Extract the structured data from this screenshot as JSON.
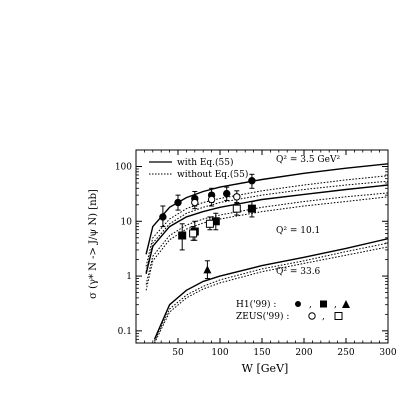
{
  "chart_data": {
    "type": "line",
    "title": "",
    "xlabel": "W  [GeV]",
    "ylabel": "σ (γ* N -> J/ψ N) [nb]",
    "xlim": [
      0,
      300
    ],
    "ylim": [
      0.06,
      200
    ],
    "yscale": "log",
    "xticks": [
      50,
      100,
      150,
      200,
      250,
      300
    ],
    "xtick_labels": [
      "50",
      "100",
      "150",
      "200",
      "250",
      "300"
    ],
    "yticks": [
      0.1,
      1,
      10,
      100
    ],
    "ytick_labels": [
      "0.1",
      "1",
      "10",
      "100"
    ],
    "legend": {
      "placement": "top-left",
      "entries": [
        {
          "label": "with Eq.(55)",
          "style": "solid"
        },
        {
          "label": "without Eq.(55)",
          "style": "dotted"
        }
      ]
    },
    "annotations": [
      "Q² = 3.5 GeV²",
      "Q² = 10.1",
      "Q² = 33.6"
    ],
    "marker_legend": {
      "h1_label": "H1('99) :",
      "zeus_label": "ZEUS('99) :",
      "separator": ","
    },
    "series": [
      {
        "q2": "3.5",
        "style": "solid",
        "x": [
          12,
          20,
          40,
          60,
          80,
          100,
          150,
          200,
          250,
          300
        ],
        "y": [
          2.5,
          8,
          18,
          27,
          35,
          42,
          58,
          75,
          93,
          112
        ]
      },
      {
        "q2": "3.5",
        "style": "dotted",
        "x": [
          12,
          20,
          40,
          60,
          80,
          100,
          150,
          200,
          250,
          300
        ],
        "y": [
          1.5,
          5,
          11,
          17,
          22,
          26,
          36,
          46,
          57,
          68
        ]
      },
      {
        "q2": "3.5",
        "style": "dotted",
        "x": [
          12,
          20,
          40,
          60,
          80,
          100,
          150,
          200,
          250,
          300
        ],
        "y": [
          1.2,
          4,
          9,
          14,
          18,
          22,
          30,
          38,
          46,
          54
        ]
      },
      {
        "q2": "10.1",
        "style": "solid",
        "x": [
          12,
          20,
          40,
          60,
          80,
          100,
          150,
          200,
          250,
          300
        ],
        "y": [
          1.1,
          3.5,
          8,
          12,
          15,
          18,
          25,
          31,
          38,
          46
        ]
      },
      {
        "q2": "10.1",
        "style": "dotted",
        "x": [
          12,
          20,
          40,
          60,
          80,
          100,
          150,
          200,
          250,
          300
        ],
        "y": [
          0.7,
          2.3,
          5.5,
          8.5,
          11,
          13,
          18,
          23,
          28,
          33
        ]
      },
      {
        "q2": "10.1",
        "style": "dotted",
        "x": [
          12,
          20,
          40,
          60,
          80,
          100,
          150,
          200,
          250,
          300
        ],
        "y": [
          0.55,
          1.9,
          4.6,
          7.2,
          9.3,
          11,
          15,
          19,
          23,
          28
        ]
      },
      {
        "q2": "33.6",
        "style": "solid",
        "x": [
          22,
          40,
          60,
          80,
          100,
          150,
          200,
          250,
          300
        ],
        "y": [
          0.07,
          0.3,
          0.55,
          0.8,
          1.0,
          1.55,
          2.2,
          3.2,
          4.8
        ]
      },
      {
        "q2": "33.6",
        "style": "dotted",
        "x": [
          22,
          40,
          60,
          80,
          100,
          150,
          200,
          250,
          300
        ],
        "y": [
          0.065,
          0.25,
          0.45,
          0.65,
          0.85,
          1.35,
          1.9,
          2.8,
          4.0
        ]
      },
      {
        "q2": "33.6",
        "style": "dotted",
        "x": [
          22,
          40,
          60,
          80,
          100,
          150,
          200,
          250,
          300
        ],
        "y": [
          0.06,
          0.22,
          0.4,
          0.58,
          0.75,
          1.2,
          1.7,
          2.4,
          3.4
        ]
      }
    ],
    "points": [
      {
        "x": 32,
        "y": 12,
        "err": [
          8,
          19
        ],
        "marker": "circle-filled"
      },
      {
        "x": 50,
        "y": 22,
        "err": [
          16,
          30
        ],
        "marker": "circle-filled"
      },
      {
        "x": 70,
        "y": 26,
        "err": [
          19,
          35
        ],
        "marker": "circle-filled"
      },
      {
        "x": 90,
        "y": 30,
        "err": [
          22,
          40
        ],
        "marker": "circle-filled"
      },
      {
        "x": 108,
        "y": 32,
        "err": [
          24,
          42
        ],
        "marker": "circle-filled"
      },
      {
        "x": 138,
        "y": 55,
        "err": [
          40,
          72
        ],
        "marker": "circle-filled"
      },
      {
        "x": 70,
        "y": 22,
        "err": [
          17,
          28
        ],
        "marker": "circle-open"
      },
      {
        "x": 90,
        "y": 25,
        "err": [
          19,
          31
        ],
        "marker": "circle-open"
      },
      {
        "x": 120,
        "y": 28,
        "err": [
          21,
          36
        ],
        "marker": "circle-open"
      },
      {
        "x": 55,
        "y": 5.5,
        "err": [
          3.0,
          9
        ],
        "marker": "square-filled"
      },
      {
        "x": 70,
        "y": 6.5,
        "err": [
          4.5,
          10
        ],
        "marker": "square-filled"
      },
      {
        "x": 95,
        "y": 10,
        "err": [
          7,
          14
        ],
        "marker": "square-filled"
      },
      {
        "x": 138,
        "y": 17,
        "err": [
          12,
          23
        ],
        "marker": "square-filled"
      },
      {
        "x": 68,
        "y": 6,
        "err": [
          4.5,
          8
        ],
        "marker": "square-open"
      },
      {
        "x": 88,
        "y": 9,
        "err": [
          7,
          12
        ],
        "marker": "square-open"
      },
      {
        "x": 120,
        "y": 17,
        "err": [
          13,
          22
        ],
        "marker": "square-open"
      },
      {
        "x": 85,
        "y": 1.3,
        "err": [
          0.9,
          1.9
        ],
        "marker": "triangle-filled"
      }
    ]
  }
}
